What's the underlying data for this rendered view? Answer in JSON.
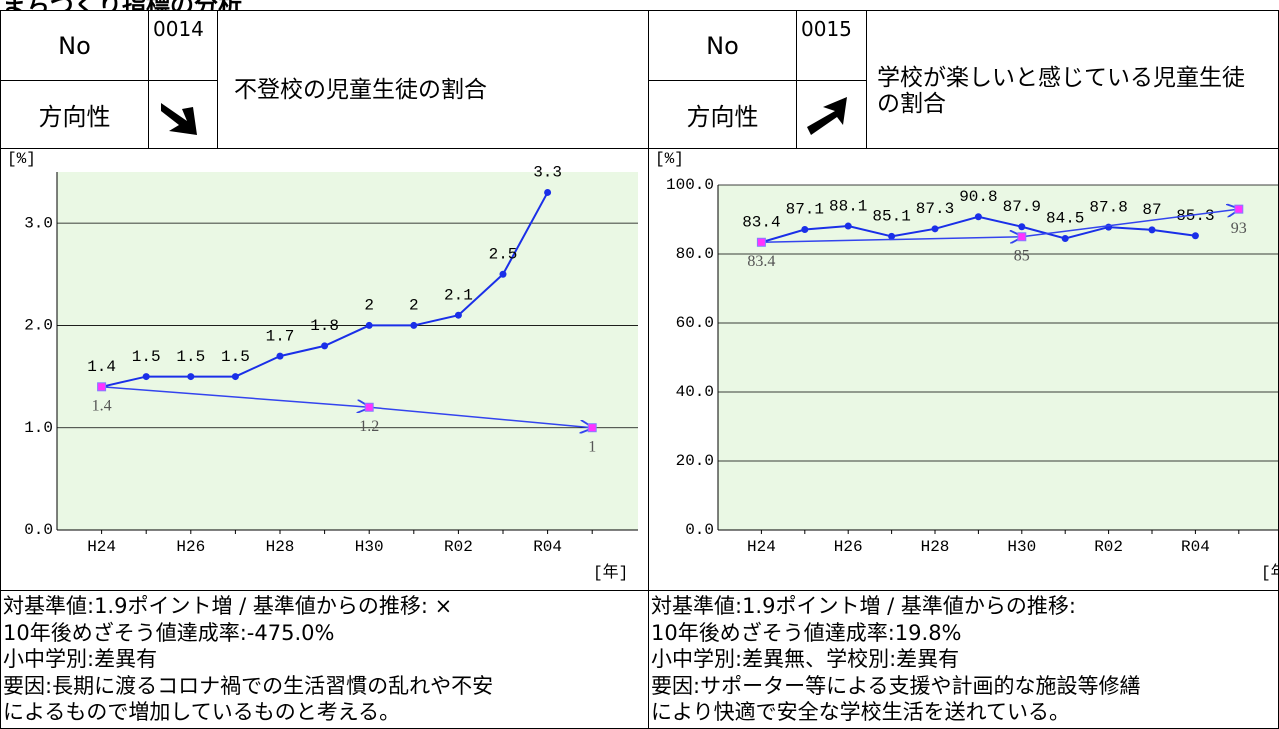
{
  "header": {
    "title": "まちづくり指標の分析"
  },
  "panels": [
    {
      "no_label": "No",
      "no": "0014",
      "title": "不登校の児童生徒の割合",
      "direction_label": "方向性",
      "notes": [
        "対基準値:1.9ポイント増 / 基準値からの推移: ×",
        "10年後めざそう値達成率:-475.0%",
        "小中学別:差異有",
        "要因:長期に渡るコロナ禍での生活習慣の乱れや不安",
        "によるもので増加しているものと考える。"
      ]
    },
    {
      "no_label": "No",
      "no": "0015",
      "title": "学校が楽しいと感じている児童生徒の割合",
      "direction_label": "方向性",
      "notes": [
        "対基準値:1.9ポイント増 / 基準値からの推移:",
        "10年後めざそう値達成率:19.8%",
        "小中学別:差異無、学校別:差異有",
        "要因:サポーター等による支援や計画的な施設等修繕",
        "により快適で安全な学校生活を送れている。"
      ]
    }
  ],
  "chart_data": [
    {
      "type": "line",
      "y_label": "[%]",
      "x_label": "[年]",
      "categories": [
        "H24",
        null,
        "H26",
        null,
        "H28",
        null,
        "H30",
        null,
        "R02",
        null,
        "R04",
        null
      ],
      "ylim": [
        0,
        3.5
      ],
      "yticks": [
        {
          "value": 0,
          "label": "0.0"
        },
        {
          "value": 1,
          "label": "1.0"
        },
        {
          "value": 2,
          "label": "2.0"
        },
        {
          "value": 3,
          "label": "3.0"
        }
      ],
      "grid": true,
      "series": [
        {
          "color": "#1a2fe8",
          "values": [
            1.4,
            1.5,
            1.5,
            1.5,
            1.7,
            1.8,
            2,
            2,
            2.1,
            2.5,
            3.3,
            null
          ]
        },
        {
          "color": "#3344ee",
          "values": [
            1.4,
            null,
            null,
            null,
            null,
            null,
            1.2,
            null,
            null,
            null,
            null,
            1
          ]
        }
      ]
    },
    {
      "type": "line",
      "y_label": "[%]",
      "x_label": "[年]",
      "categories": [
        "H24",
        null,
        "H26",
        null,
        "H28",
        null,
        "H30",
        null,
        "R02",
        null,
        "R04",
        null
      ],
      "ylim": [
        0,
        100
      ],
      "yticks": [
        {
          "value": 0,
          "label": "0.0"
        },
        {
          "value": 20,
          "label": "20.0"
        },
        {
          "value": 40,
          "label": "40.0"
        },
        {
          "value": 60,
          "label": "60.0"
        },
        {
          "value": 80,
          "label": "80.0"
        },
        {
          "value": 100,
          "label": "100.0"
        }
      ],
      "grid": true,
      "series": [
        {
          "color": "#1a2fe8",
          "values": [
            83.4,
            87.1,
            88.1,
            85.1,
            87.3,
            90.8,
            87.9,
            84.5,
            87.8,
            87,
            85.3,
            null
          ]
        },
        {
          "color": "#3344ee",
          "values": [
            83.4,
            null,
            null,
            null,
            null,
            null,
            85,
            null,
            null,
            null,
            null,
            93
          ]
        }
      ]
    }
  ]
}
